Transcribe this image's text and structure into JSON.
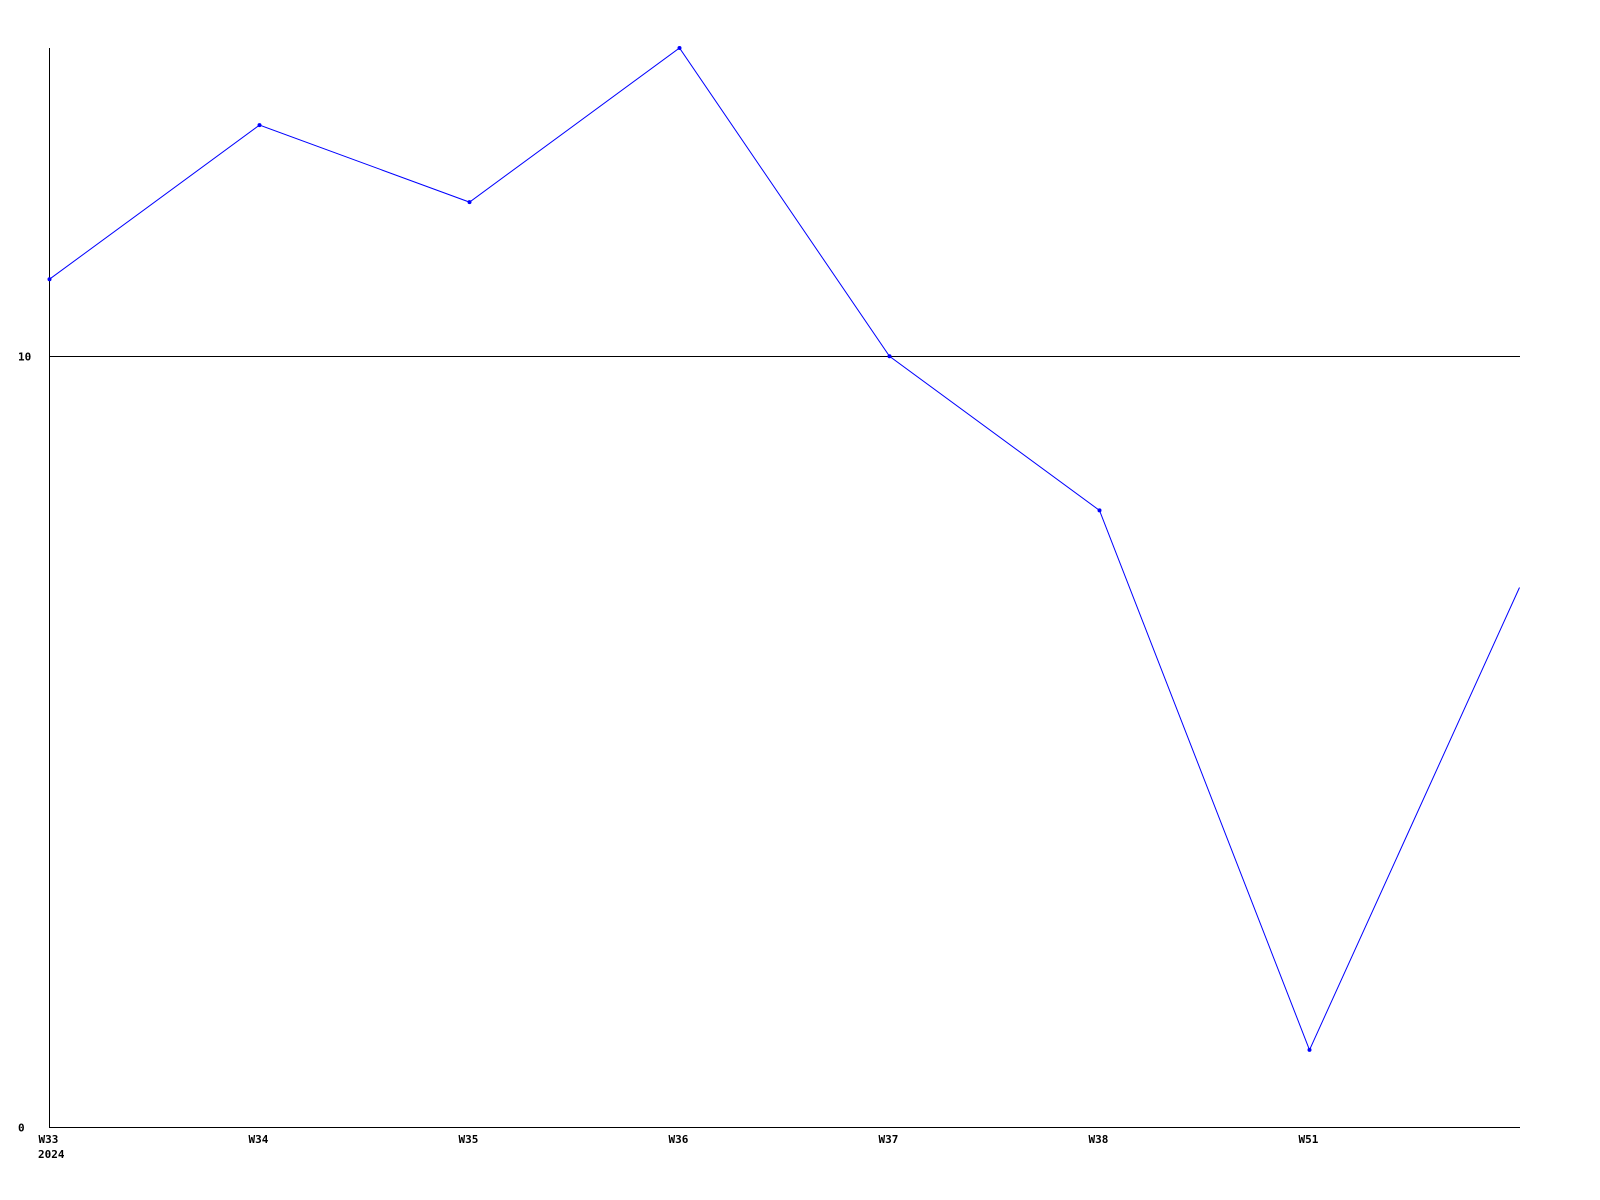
{
  "chart_data": {
    "type": "line",
    "title": "",
    "xlabel": "",
    "ylabel": "",
    "categories": [
      "W33",
      "W34",
      "W35",
      "W36",
      "W37",
      "W38",
      "W51",
      ""
    ],
    "year_label": "2024",
    "series": [
      {
        "values": [
          11,
          13,
          12,
          14,
          10,
          8,
          1,
          7
        ],
        "color": "#0000ff"
      }
    ],
    "ylim": [
      0,
      14
    ],
    "y_ticks": [
      0,
      10
    ],
    "y_tick_labels": [
      "0",
      "10"
    ],
    "grid": "horizontal line at 10",
    "legend": "none",
    "axis_color": "#000000"
  }
}
